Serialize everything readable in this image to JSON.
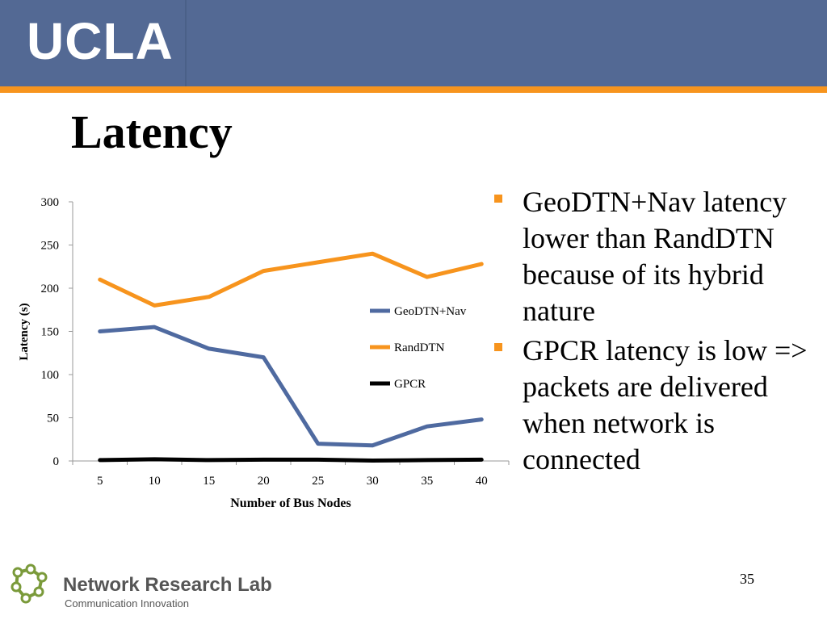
{
  "header": {
    "logo": "UCLA"
  },
  "slide": {
    "title": "Latency",
    "bullets": [
      "GeoDTN+Nav latency lower than RandDTN because of its hybrid nature",
      "GPCR latency is low => packets are delivered when network is connected"
    ],
    "page_number": "35"
  },
  "footer": {
    "lab_name": "Network Research Lab",
    "lab_tagline": "Communication Innovation"
  },
  "colors": {
    "header_bg": "#536994",
    "accent_orange": "#f7941d",
    "series_geodtn": "#4f6aa0",
    "series_randdtn": "#f7941d",
    "series_gpcr": "#000000"
  },
  "chart_data": {
    "type": "line",
    "title": "",
    "xlabel": "Number of Bus Nodes",
    "ylabel": "Latency (s)",
    "categories": [
      "5",
      "10",
      "15",
      "20",
      "25",
      "30",
      "35",
      "40"
    ],
    "ylim": [
      0,
      300
    ],
    "yticks": [
      "0",
      "50",
      "100",
      "150",
      "200",
      "250",
      "300"
    ],
    "grid": false,
    "legend_position": "right",
    "series": [
      {
        "name": "GeoDTN+Nav",
        "color": "#4f6aa0",
        "values": [
          150,
          155,
          130,
          120,
          20,
          18,
          40,
          48
        ]
      },
      {
        "name": "RandDTN",
        "color": "#f7941d",
        "values": [
          210,
          180,
          190,
          220,
          230,
          240,
          213,
          228
        ]
      },
      {
        "name": "GPCR",
        "color": "#000000",
        "values": [
          1,
          2,
          1,
          1.5,
          1.5,
          0.5,
          1,
          1.5
        ]
      }
    ]
  }
}
